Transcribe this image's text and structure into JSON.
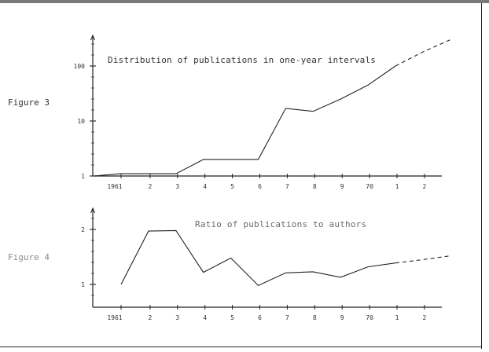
{
  "figures": {
    "fig3": {
      "label": "Figure 3"
    },
    "fig4": {
      "label": "Figure 4"
    }
  },
  "chart_data": [
    {
      "type": "line",
      "title": "Distribution of publications in one-year intervals",
      "xlabel": "",
      "ylabel": "",
      "y_scale": "log",
      "ylim": [
        1,
        300
      ],
      "y_tick_labels": [
        "1",
        "10",
        "100"
      ],
      "y_tick_values": [
        1,
        10,
        100
      ],
      "x_tick_labels": [
        "1961",
        "2",
        "3",
        "4",
        "5",
        "6",
        "7",
        "8",
        "9",
        "70",
        "1",
        "2"
      ],
      "x": [
        1960,
        1961,
        1962,
        1963,
        1964,
        1965,
        1966,
        1967,
        1968,
        1969,
        1970,
        1971,
        1972,
        1973
      ],
      "series": [
        {
          "values": [
            1,
            1.1,
            1.1,
            1.1,
            2,
            2,
            2,
            17,
            15,
            25,
            45,
            100,
            null,
            null
          ],
          "style": "solid"
        },
        {
          "values": [
            null,
            null,
            null,
            null,
            null,
            null,
            null,
            null,
            null,
            null,
            null,
            100,
            180,
            300
          ],
          "style": "dashed"
        }
      ],
      "grid": false
    },
    {
      "type": "line",
      "title": "Ratio of publications to authors",
      "xlabel": "",
      "ylabel": "",
      "ylim": [
        0,
        2.3
      ],
      "y_tick_labels": [
        "1",
        "2"
      ],
      "y_tick_values": [
        1,
        2
      ],
      "x_tick_labels": [
        "1961",
        "2",
        "3",
        "4",
        "5",
        "6",
        "7",
        "8",
        "9",
        "70",
        "1",
        "2"
      ],
      "x": [
        1961,
        1962,
        1963,
        1964,
        1965,
        1966,
        1967,
        1968,
        1969,
        1970,
        1971,
        1972,
        1973
      ],
      "series": [
        {
          "values": [
            1.0,
            1.97,
            1.98,
            1.22,
            1.48,
            0.98,
            1.21,
            1.23,
            1.13,
            1.32,
            1.39,
            null,
            null
          ],
          "style": "solid"
        },
        {
          "values": [
            null,
            null,
            null,
            null,
            null,
            null,
            null,
            null,
            null,
            null,
            1.39,
            1.45,
            1.52
          ],
          "style": "dashed"
        }
      ],
      "grid": false
    }
  ]
}
